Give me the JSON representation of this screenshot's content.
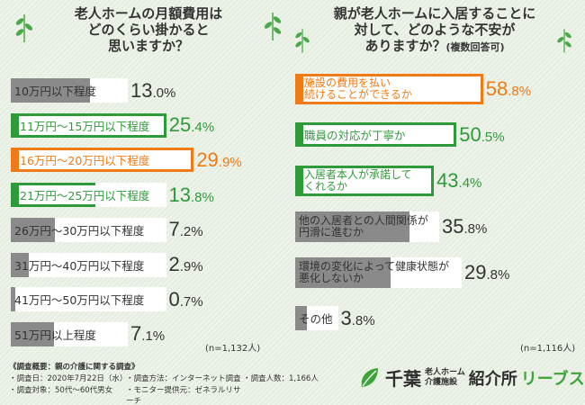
{
  "colors": {
    "green": "#2f9a3a",
    "orange": "#ef7a16",
    "gray": "#8a8a8a",
    "white": "#ffffff"
  },
  "left": {
    "title_lines": [
      "老人ホームの月額費用は",
      "どのくらい掛かると",
      "思いますか？"
    ],
    "note": "(n=1,132人)"
  },
  "right": {
    "title_lines": [
      "親が老人ホームに入居することに",
      "対して、どのような不安が"
    ],
    "title_line3": "ありますか？",
    "title_sub": "(複数回答可)",
    "note": "(n=1,116人)"
  },
  "survey": {
    "heading": "《調査概要：親の介護に関する調査》",
    "items": [
      "・調査日：2020年7月22日（水）",
      "・調査方法：インターネット調査",
      "・調査人数：1,166人",
      "・調査対象：50代〜60代男女",
      "・モニター提供元：ゼネラルリサーチ"
    ]
  },
  "brand": {
    "name": "千葉",
    "sub_line1": "老人ホーム",
    "sub_line2": "介護施設",
    "intro": "紹介所",
    "leaves": "リーブス"
  },
  "chart_data": [
    {
      "type": "bar",
      "title": "老人ホームの月額費用はどのくらい掛かると思いますか？",
      "unit": "%",
      "categories": [
        "10万円以下程度",
        "11万円〜15万円以下程度",
        "16万円〜20万円以下程度",
        "21万円〜25万円以下程度",
        "26万円〜30万円以下程度",
        "31万円〜40万円以下程度",
        "41万円〜50万円以下程度",
        "51万円以上程度"
      ],
      "values": [
        13.0,
        25.4,
        29.9,
        13.8,
        7.2,
        2.9,
        0.7,
        7.1
      ],
      "value_labels": [
        [
          "13",
          ".0%"
        ],
        [
          "25",
          ".4%"
        ],
        [
          "29",
          ".9%"
        ],
        [
          "13",
          ".8%"
        ],
        [
          "7",
          ".2%"
        ],
        [
          "2",
          ".9%"
        ],
        [
          "0",
          ".7%"
        ],
        [
          "7",
          ".1%"
        ]
      ],
      "colors": [
        "gray",
        "green",
        "orange",
        "green",
        "gray",
        "gray",
        "gray",
        "gray"
      ],
      "n": "n=1,132人"
    },
    {
      "type": "bar",
      "title": "親が老人ホームに入居することに対して、どのような不安がありますか？(複数回答可)",
      "unit": "%",
      "categories": [
        [
          "施設の費用を払い",
          "続けることができるか"
        ],
        [
          "職員の対応が丁寧か"
        ],
        [
          "入居者本人が承諾して",
          "くれるか"
        ],
        [
          "他の入居者との人間関係が",
          "円滑に進むか"
        ],
        [
          "環境の変化によって健康状態が",
          "悪化しないか"
        ],
        [
          "その他"
        ]
      ],
      "values": [
        58.8,
        50.5,
        43.4,
        35.8,
        29.8,
        3.8
      ],
      "value_labels": [
        [
          "58",
          ".8%"
        ],
        [
          "50",
          ".5%"
        ],
        [
          "43",
          ".4%"
        ],
        [
          "35",
          ".8%"
        ],
        [
          "29",
          ".8%"
        ],
        [
          "3",
          ".8%"
        ]
      ],
      "colors": [
        "orange",
        "green",
        "green",
        "gray",
        "gray",
        "gray"
      ],
      "n": "n=1,116人"
    }
  ]
}
